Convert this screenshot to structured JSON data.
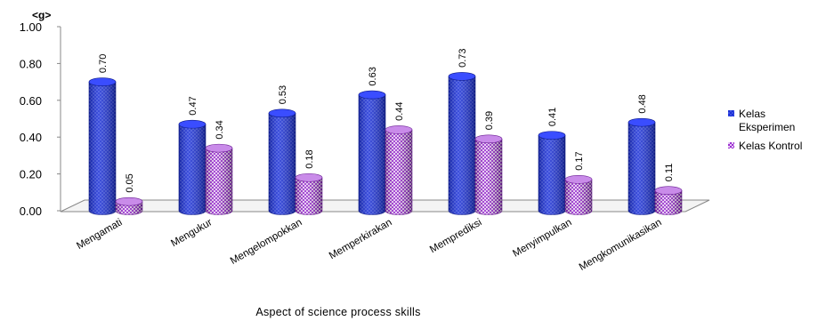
{
  "chart_data": {
    "type": "bar",
    "ylabel": "<g>",
    "xlabel": "Aspect of science process skills",
    "ylim": [
      0,
      1.0
    ],
    "yticks": [
      "0.00",
      "0.20",
      "0.40",
      "0.60",
      "0.80",
      "1.00"
    ],
    "categories": [
      "Mengamati",
      "Mengukur",
      "Mengelompokkan",
      "Memperkirakan",
      "Memprediksi",
      "Menyimpulkan",
      "Mengkomunikasikan"
    ],
    "series": [
      {
        "name": "Kelas Eksperimen",
        "values": [
          0.7,
          0.47,
          0.53,
          0.63,
          0.73,
          0.41,
          0.48
        ],
        "labels": [
          "0.70",
          "0.47",
          "0.53",
          "0.63",
          "0.73",
          "0.41",
          "0.48"
        ],
        "color": "#1a2fd6"
      },
      {
        "name": "Kelas Kontrol",
        "values": [
          0.05,
          0.34,
          0.18,
          0.44,
          0.39,
          0.17,
          0.11
        ],
        "labels": [
          "0.05",
          "0.34",
          "0.18",
          "0.44",
          "0.39",
          "0.17",
          "0.11"
        ],
        "color": "#a23bd6"
      }
    ],
    "legend": [
      "Kelas Eksperimen",
      "Kelas Kontrol"
    ],
    "legend_position": "right",
    "grid": false
  }
}
